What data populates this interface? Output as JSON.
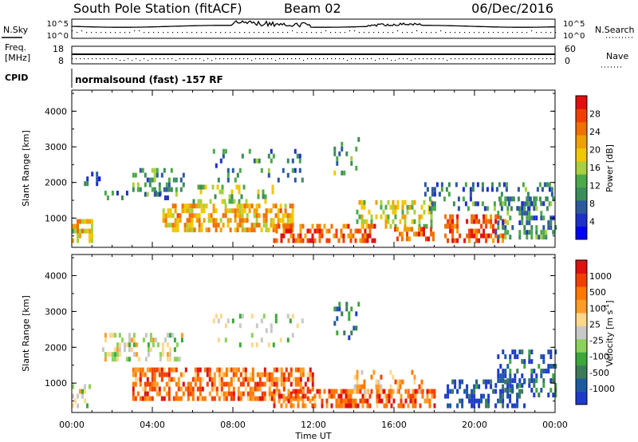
{
  "header": {
    "station": "South Pole Station (fitACF)",
    "beam": "Beam 02",
    "date": "06/Dec/2016"
  },
  "strip_labels": {
    "nsky": "N.Sky",
    "nsearch": "N.Search",
    "nsky_ticks": [
      "10^5",
      "10^0"
    ],
    "nsearch_ticks": [
      "10^5",
      "10^0"
    ],
    "freq_line1": "Freq.",
    "freq_line2": "[MHz]",
    "freq_ticks": [
      "18",
      "8"
    ],
    "nave": "Nave",
    "nave_ticks": [
      "60",
      "0"
    ],
    "cpid": "CPID",
    "cpid_text": "normalsound (fast) -157 RF"
  },
  "colors": {
    "power": [
      "#0000ff",
      "#2030c8",
      "#2d5a9c",
      "#3c8c5a",
      "#4ca84c",
      "#a8d040",
      "#f0c800",
      "#f0a000",
      "#f07000",
      "#f04000",
      "#e01010"
    ],
    "velocity": [
      "#1e3cc8",
      "#1e5aa0",
      "#3c7a5a",
      "#3ca83c",
      "#8cd25a",
      "#c8c8c8",
      "#ffd88c",
      "#ff9c28",
      "#ff7800",
      "#f04000",
      "#e01010"
    ]
  },
  "chart_data": [
    {
      "type": "heatmap",
      "ylabel": "Slant Range [km]",
      "xlabel": "",
      "ylim": [
        180,
        4590
      ],
      "yticks": [
        1000,
        2000,
        3000,
        4000
      ],
      "ytick_labels": [
        "1000",
        "2000",
        "3000",
        "4000"
      ],
      "colorbar": {
        "label": "Power [dB]",
        "range": [
          0,
          32
        ],
        "ticks": [
          "4",
          "8",
          "12",
          "16",
          "20",
          "24",
          "28"
        ]
      },
      "bands": [
        {
          "t0": 0.0,
          "t1": 1.0,
          "r0": 300,
          "r1": 950,
          "level": 0.6,
          "density": 0.55
        },
        {
          "t0": 0.6,
          "t1": 1.4,
          "r0": 1900,
          "r1": 2200,
          "level": 0.2,
          "density": 0.35
        },
        {
          "t0": 1.5,
          "t1": 5.0,
          "r0": 1500,
          "r1": 1650,
          "level": 0.3,
          "density": 0.2
        },
        {
          "t0": 3.0,
          "t1": 5.5,
          "r0": 1600,
          "r1": 2300,
          "level": 0.35,
          "density": 0.4
        },
        {
          "t0": 4.5,
          "t1": 11.0,
          "r0": 600,
          "r1": 1300,
          "level": 0.65,
          "density": 0.55
        },
        {
          "t0": 6.0,
          "t1": 10.0,
          "r0": 1400,
          "r1": 1850,
          "level": 0.45,
          "density": 0.3
        },
        {
          "t0": 7.0,
          "t1": 11.5,
          "r0": 2000,
          "r1": 2900,
          "level": 0.3,
          "density": 0.12
        },
        {
          "t0": 10.0,
          "t1": 15.0,
          "r0": 300,
          "r1": 800,
          "level": 0.85,
          "density": 0.6
        },
        {
          "t0": 13.0,
          "t1": 14.2,
          "r0": 2200,
          "r1": 3200,
          "level": 0.4,
          "density": 0.2
        },
        {
          "t0": 14.0,
          "t1": 18.0,
          "r0": 700,
          "r1": 1500,
          "level": 0.55,
          "density": 0.4
        },
        {
          "t0": 16.0,
          "t1": 18.0,
          "r0": 350,
          "r1": 700,
          "level": 0.8,
          "density": 0.5
        },
        {
          "t0": 17.5,
          "t1": 24.0,
          "r0": 1200,
          "r1": 2000,
          "level": 0.3,
          "density": 0.3
        },
        {
          "t0": 18.5,
          "t1": 21.5,
          "r0": 300,
          "r1": 1000,
          "level": 0.85,
          "density": 0.55
        },
        {
          "t0": 21.0,
          "t1": 24.0,
          "r0": 400,
          "r1": 1600,
          "level": 0.3,
          "density": 0.35
        }
      ]
    },
    {
      "type": "heatmap",
      "ylabel": "Slant Range [km]",
      "xlabel": "Time UT",
      "xlim": [
        0,
        24
      ],
      "xticks": [
        "00:00",
        "04:00",
        "08:00",
        "12:00",
        "16:00",
        "20:00",
        "00:00"
      ],
      "ylim": [
        180,
        4590
      ],
      "yticks": [
        1000,
        2000,
        3000,
        4000
      ],
      "ytick_labels": [
        "1000",
        "2000",
        "3000",
        "4000"
      ],
      "colorbar": {
        "label": "Velocity [m s^-1]",
        "range": [
          -1500,
          1500
        ],
        "ticks": [
          "1000",
          "500",
          "100",
          "25",
          "-25",
          "-100",
          "-500",
          "-1000"
        ]
      },
      "bands": [
        {
          "t0": 0.0,
          "t1": 1.0,
          "r0": 300,
          "r1": 950,
          "level": 0.5,
          "density": 0.45
        },
        {
          "t0": 1.5,
          "t1": 5.5,
          "r0": 1600,
          "r1": 2300,
          "level": 0.5,
          "density": 0.4
        },
        {
          "t0": 3.0,
          "t1": 12.0,
          "r0": 500,
          "r1": 1400,
          "level": 0.78,
          "density": 0.6
        },
        {
          "t0": 7.0,
          "t1": 11.5,
          "r0": 2000,
          "r1": 2900,
          "level": 0.45,
          "density": 0.12
        },
        {
          "t0": 10.0,
          "t1": 18.0,
          "r0": 300,
          "r1": 800,
          "level": 0.8,
          "density": 0.55
        },
        {
          "t0": 13.0,
          "t1": 14.2,
          "r0": 2200,
          "r1": 3200,
          "level": 0.15,
          "density": 0.2
        },
        {
          "t0": 14.0,
          "t1": 17.5,
          "r0": 700,
          "r1": 1300,
          "level": 0.7,
          "density": 0.35
        },
        {
          "t0": 18.5,
          "t1": 22.5,
          "r0": 300,
          "r1": 1100,
          "level": 0.1,
          "density": 0.45
        },
        {
          "t0": 21.0,
          "t1": 24.0,
          "r0": 600,
          "r1": 1900,
          "level": 0.15,
          "density": 0.35
        }
      ]
    }
  ]
}
